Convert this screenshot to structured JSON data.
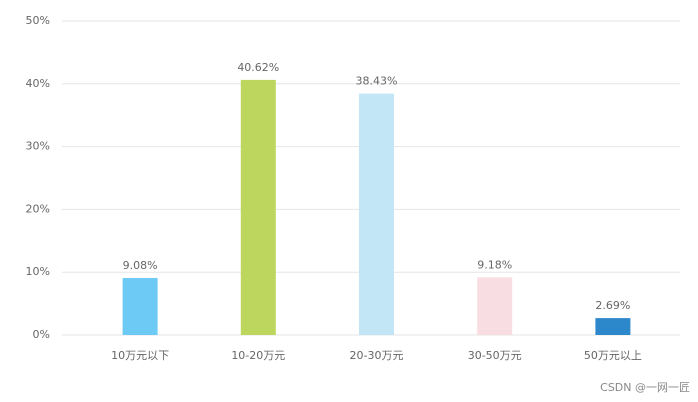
{
  "chart_data": {
    "type": "bar",
    "categories": [
      "10万元以下",
      "10-20万元",
      "20-30万元",
      "30-50万元",
      "50万元以上"
    ],
    "values": [
      9.08,
      40.62,
      38.43,
      9.18,
      2.69
    ],
    "value_labels": [
      "9.08%",
      "40.62%",
      "38.43%",
      "9.18%",
      "2.69%"
    ],
    "colors": [
      "#6ccaf5",
      "#bcd65e",
      "#c3e6f6",
      "#f8dde2",
      "#2d87cb"
    ],
    "ylim": [
      0,
      50
    ],
    "yticks": [
      {
        "value": 0,
        "label": "0%"
      },
      {
        "value": 10,
        "label": "10%"
      },
      {
        "value": 20,
        "label": "20%"
      },
      {
        "value": 30,
        "label": "30%"
      },
      {
        "value": 40,
        "label": "40%"
      },
      {
        "value": 50,
        "label": "50%"
      }
    ],
    "grid": true
  },
  "watermark": "CSDN @一网一匠"
}
